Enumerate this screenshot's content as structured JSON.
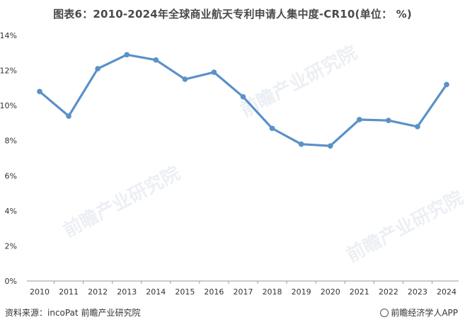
{
  "title": "图表6：2010-2024年全球商业航天专利申请人集中度-CR10(单位： %)",
  "source": "资料来源：incoPat 前瞻产业研究院",
  "brand": "前瞻经济学人APP",
  "watermark": "前瞻产业研究院",
  "colors": {
    "line": "#5a91c7",
    "axis": "#999999",
    "text": "#333333"
  },
  "chart_data": {
    "type": "line",
    "title": "图表6：2010-2024年全球商业航天专利申请人集中度-CR10(单位： %)",
    "xlabel": "",
    "ylabel": "",
    "categories": [
      "2010",
      "2011",
      "2012",
      "2013",
      "2014",
      "2015",
      "2016",
      "2017",
      "2018",
      "2019",
      "2020",
      "2021",
      "2022",
      "2023",
      "2024"
    ],
    "series": [
      {
        "values": [
          10.8,
          9.4,
          12.1,
          12.9,
          12.6,
          11.5,
          11.9,
          10.5,
          8.7,
          7.8,
          7.7,
          9.2,
          9.15,
          8.8,
          11.2
        ]
      }
    ],
    "ylim": [
      0,
      14
    ],
    "yticks": [
      "0%",
      "2%",
      "4%",
      "6%",
      "8%",
      "10%",
      "12%",
      "14%"
    ],
    "grid": false,
    "legend": "none"
  }
}
